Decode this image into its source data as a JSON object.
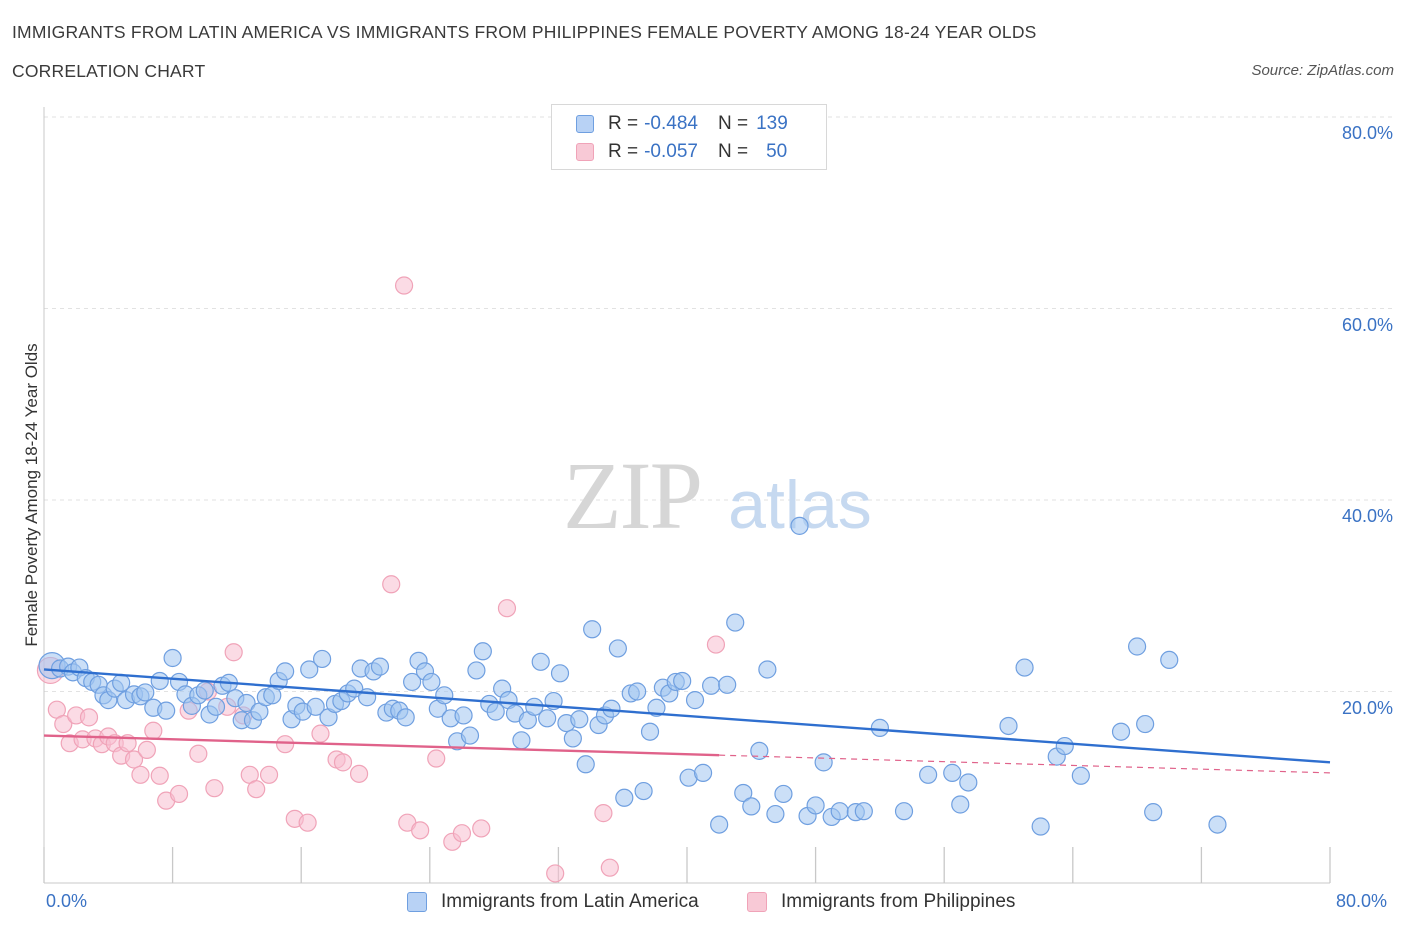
{
  "header": {
    "title": "IMMIGRANTS FROM LATIN AMERICA VS IMMIGRANTS FROM PHILIPPINES FEMALE POVERTY AMONG 18-24 YEAR OLDS",
    "subtitle": "CORRELATION CHART",
    "source": "Source: ZipAtlas.com"
  },
  "watermark": {
    "zip": "ZIP",
    "atlas": "atlas"
  },
  "legend_top": {
    "rows": [
      {
        "r_label": "R =",
        "r_value": "-0.484",
        "n_label": "N =",
        "n_value": "139"
      },
      {
        "r_label": "R =",
        "r_value": "-0.057",
        "n_label": "N =",
        "n_value": "50"
      }
    ]
  },
  "chart_data": {
    "type": "scatter",
    "ylabel": "Female Poverty Among 18-24 Year Olds",
    "xlim": [
      0,
      80
    ],
    "ylim": [
      0,
      80
    ],
    "x_tick_labels": [
      "0.0%",
      "80.0%"
    ],
    "y_tick_labels": [
      "20.0%",
      "40.0%",
      "60.0%",
      "80.0%"
    ],
    "y_ticks": [
      20,
      40,
      60,
      80
    ],
    "grid": true,
    "legend_position": "bottom",
    "series": [
      {
        "name": "Immigrants from Latin America",
        "color": "#6f9fe0",
        "line_color": "#2f6fcf",
        "trend": {
          "x0": 0,
          "y0": 22.3,
          "x1": 80,
          "y1": 12.6
        },
        "points": [
          [
            0.5,
            22.7
          ],
          [
            1.0,
            22.4
          ],
          [
            1.5,
            22.6
          ],
          [
            1.8,
            22.0
          ],
          [
            2.2,
            22.5
          ],
          [
            2.6,
            21.4
          ],
          [
            3.0,
            21.0
          ],
          [
            3.4,
            20.7
          ],
          [
            3.7,
            19.6
          ],
          [
            4.0,
            19.1
          ],
          [
            4.4,
            20.3
          ],
          [
            4.8,
            20.9
          ],
          [
            5.1,
            19.1
          ],
          [
            5.6,
            19.7
          ],
          [
            6.0,
            19.5
          ],
          [
            6.3,
            19.9
          ],
          [
            6.8,
            18.3
          ],
          [
            7.2,
            21.1
          ],
          [
            7.6,
            18.0
          ],
          [
            8.0,
            23.5
          ],
          [
            8.4,
            21.0
          ],
          [
            8.8,
            19.7
          ],
          [
            9.2,
            18.5
          ],
          [
            9.6,
            19.6
          ],
          [
            10.0,
            20.1
          ],
          [
            10.3,
            17.6
          ],
          [
            10.7,
            18.4
          ],
          [
            11.1,
            20.6
          ],
          [
            11.5,
            20.9
          ],
          [
            11.9,
            19.3
          ],
          [
            12.3,
            17.0
          ],
          [
            12.6,
            18.8
          ],
          [
            13.0,
            17.0
          ],
          [
            13.4,
            17.9
          ],
          [
            13.8,
            19.4
          ],
          [
            14.2,
            19.6
          ],
          [
            14.6,
            21.1
          ],
          [
            15.0,
            22.1
          ],
          [
            15.4,
            17.1
          ],
          [
            15.7,
            18.5
          ],
          [
            16.1,
            17.9
          ],
          [
            16.5,
            22.3
          ],
          [
            16.9,
            18.4
          ],
          [
            17.3,
            23.4
          ],
          [
            17.7,
            17.3
          ],
          [
            18.1,
            18.7
          ],
          [
            18.5,
            19.0
          ],
          [
            18.9,
            19.8
          ],
          [
            19.3,
            20.3
          ],
          [
            19.7,
            22.4
          ],
          [
            20.1,
            19.4
          ],
          [
            20.5,
            22.1
          ],
          [
            20.9,
            22.6
          ],
          [
            21.3,
            17.8
          ],
          [
            21.7,
            18.2
          ],
          [
            22.1,
            18.0
          ],
          [
            22.5,
            17.3
          ],
          [
            22.9,
            21.0
          ],
          [
            23.3,
            23.2
          ],
          [
            23.7,
            22.1
          ],
          [
            24.1,
            21.0
          ],
          [
            24.5,
            18.2
          ],
          [
            24.9,
            19.6
          ],
          [
            25.3,
            17.2
          ],
          [
            25.7,
            14.8
          ],
          [
            26.1,
            17.5
          ],
          [
            26.5,
            15.4
          ],
          [
            26.9,
            22.2
          ],
          [
            27.3,
            24.2
          ],
          [
            27.7,
            18.7
          ],
          [
            28.1,
            17.9
          ],
          [
            28.5,
            20.3
          ],
          [
            28.9,
            19.1
          ],
          [
            29.3,
            17.7
          ],
          [
            29.7,
            14.9
          ],
          [
            30.1,
            17.0
          ],
          [
            30.5,
            18.4
          ],
          [
            30.9,
            23.1
          ],
          [
            31.3,
            17.2
          ],
          [
            31.7,
            19.0
          ],
          [
            32.1,
            21.9
          ],
          [
            32.5,
            16.7
          ],
          [
            32.9,
            15.1
          ],
          [
            33.3,
            17.1
          ],
          [
            33.7,
            12.4
          ],
          [
            34.1,
            26.5
          ],
          [
            34.5,
            16.5
          ],
          [
            34.9,
            17.5
          ],
          [
            35.3,
            18.2
          ],
          [
            35.7,
            24.5
          ],
          [
            36.1,
            8.9
          ],
          [
            36.5,
            19.8
          ],
          [
            36.9,
            20.0
          ],
          [
            37.3,
            9.6
          ],
          [
            37.7,
            15.8
          ],
          [
            38.1,
            18.3
          ],
          [
            38.5,
            20.4
          ],
          [
            38.9,
            19.8
          ],
          [
            39.3,
            21.0
          ],
          [
            39.7,
            21.1
          ],
          [
            40.1,
            11.0
          ],
          [
            40.5,
            19.1
          ],
          [
            41.0,
            11.5
          ],
          [
            41.5,
            20.6
          ],
          [
            42.0,
            6.1
          ],
          [
            42.5,
            20.7
          ],
          [
            43.0,
            27.2
          ],
          [
            43.5,
            9.4
          ],
          [
            44.0,
            8.0
          ],
          [
            44.5,
            13.8
          ],
          [
            45.0,
            22.3
          ],
          [
            45.5,
            7.2
          ],
          [
            46.0,
            9.3
          ],
          [
            47.0,
            37.3
          ],
          [
            47.5,
            7.0
          ],
          [
            48.0,
            8.1
          ],
          [
            48.5,
            12.6
          ],
          [
            49.0,
            6.9
          ],
          [
            49.5,
            7.5
          ],
          [
            50.5,
            7.4
          ],
          [
            51.0,
            7.5
          ],
          [
            52.0,
            16.2
          ],
          [
            53.5,
            7.5
          ],
          [
            55.0,
            11.3
          ],
          [
            56.5,
            11.5
          ],
          [
            57.0,
            8.2
          ],
          [
            57.5,
            10.5
          ],
          [
            60.0,
            16.4
          ],
          [
            61.0,
            22.5
          ],
          [
            62.0,
            5.9
          ],
          [
            63.0,
            13.2
          ],
          [
            63.5,
            14.3
          ],
          [
            64.5,
            11.2
          ],
          [
            67.0,
            15.8
          ],
          [
            68.0,
            24.7
          ],
          [
            68.5,
            16.6
          ],
          [
            69.0,
            7.4
          ],
          [
            70.0,
            23.3
          ],
          [
            73.0,
            6.1
          ]
        ]
      },
      {
        "name": "Immigrants from Philippines",
        "color": "#f0a3b8",
        "line_color": "#e0628a",
        "trend": {
          "x0": 0,
          "y0": 15.4,
          "x1": 80,
          "y1": 11.5
        },
        "points": [
          [
            0.4,
            22.2
          ],
          [
            0.8,
            18.1
          ],
          [
            1.2,
            16.6
          ],
          [
            1.6,
            14.6
          ],
          [
            2.0,
            17.5
          ],
          [
            2.4,
            15.0
          ],
          [
            2.8,
            17.3
          ],
          [
            3.2,
            15.1
          ],
          [
            3.6,
            14.5
          ],
          [
            4.0,
            15.3
          ],
          [
            4.4,
            14.6
          ],
          [
            4.8,
            13.3
          ],
          [
            5.2,
            14.6
          ],
          [
            5.6,
            12.9
          ],
          [
            6.0,
            11.3
          ],
          [
            6.4,
            13.9
          ],
          [
            6.8,
            15.9
          ],
          [
            7.2,
            11.2
          ],
          [
            7.6,
            8.6
          ],
          [
            8.4,
            9.3
          ],
          [
            9.0,
            18.0
          ],
          [
            9.6,
            13.5
          ],
          [
            10.2,
            20.0
          ],
          [
            10.6,
            9.9
          ],
          [
            11.4,
            18.4
          ],
          [
            11.8,
            24.1
          ],
          [
            12.4,
            17.5
          ],
          [
            12.8,
            11.3
          ],
          [
            13.2,
            9.8
          ],
          [
            14.0,
            11.3
          ],
          [
            15.0,
            14.5
          ],
          [
            15.6,
            6.7
          ],
          [
            16.4,
            6.3
          ],
          [
            17.2,
            15.6
          ],
          [
            18.2,
            12.9
          ],
          [
            18.6,
            12.6
          ],
          [
            19.6,
            11.4
          ],
          [
            21.6,
            31.2
          ],
          [
            22.4,
            62.4
          ],
          [
            22.6,
            6.3
          ],
          [
            23.4,
            5.5
          ],
          [
            24.4,
            13.0
          ],
          [
            25.4,
            4.3
          ],
          [
            26.0,
            5.2
          ],
          [
            27.2,
            5.7
          ],
          [
            28.8,
            28.7
          ],
          [
            31.8,
            1.0
          ],
          [
            34.8,
            7.3
          ],
          [
            35.2,
            1.6
          ],
          [
            41.8,
            24.9
          ]
        ]
      }
    ]
  },
  "bottom_legend": {
    "items": [
      {
        "label": "Immigrants from Latin America",
        "color": "#6f9fe0"
      },
      {
        "label": "Immigrants from Philippines",
        "color": "#f0a3b8"
      }
    ]
  }
}
